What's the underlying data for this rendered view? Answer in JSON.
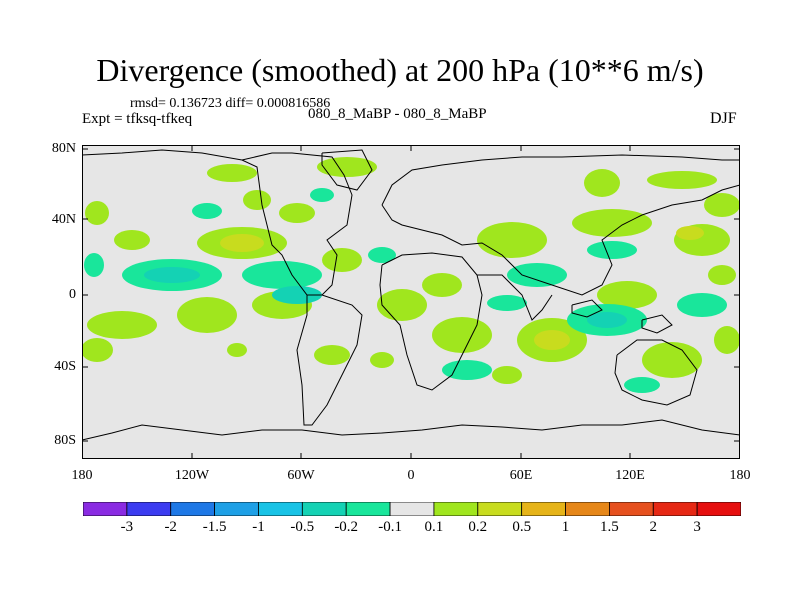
{
  "header": {
    "title": "Divergence (smoothed) at 200 hPa (10**6 m/s)",
    "stats": "rmsd= 0.136723 diff= 0.000816586",
    "expt": "Expt = tfksq-tfkeq",
    "runs": "080_8_MaBP - 080_8_MaBP",
    "season": "DJF"
  },
  "axes": {
    "lat_labels": [
      "80N",
      "40N",
      "0",
      "40S",
      "80S"
    ],
    "lon_labels": [
      "180",
      "120W",
      "60W",
      "0",
      "60E",
      "120E",
      "180"
    ]
  },
  "colorbar": {
    "labels": [
      "-3",
      "-2",
      "-1.5",
      "-1",
      "-0.5",
      "-0.2",
      "-0.1",
      "0.1",
      "0.2",
      "0.5",
      "1",
      "1.5",
      "2",
      "3"
    ],
    "colors": [
      "#8a2be2",
      "#3c3cf0",
      "#1e78e6",
      "#1ea0e6",
      "#19c3e6",
      "#14d2b4",
      "#19e69b",
      "#e6e6e6",
      "#a0e61e",
      "#c8dc1e",
      "#e6b419",
      "#e68719",
      "#e6501e",
      "#e62814",
      "#e60f0f"
    ]
  },
  "map_colors": {
    "background": "#e6e6e6",
    "pos_weak": "#a0e61e",
    "pos_mod": "#c8dc1e",
    "pos_strong": "#e6b419",
    "neg_weak": "#19e69b",
    "neg_mod": "#14d2b4",
    "neg_strong": "#19c3e6"
  }
}
